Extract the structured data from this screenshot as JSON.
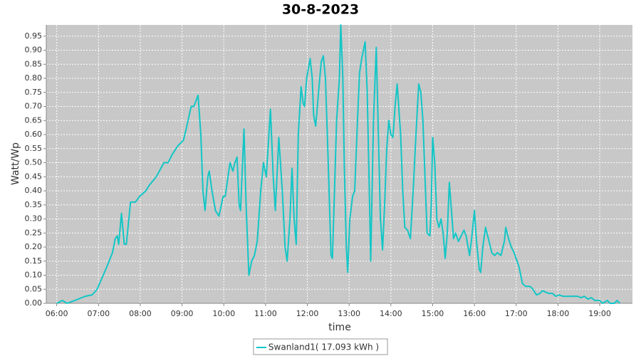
{
  "chart_data": {
    "type": "line",
    "title": "30-8-2023",
    "x_label": "time",
    "y_label": "Watt/Wp",
    "xlim": [
      "05:45",
      "19:47"
    ],
    "xticks": [
      "06:00",
      "07:00",
      "08:00",
      "09:00",
      "10:00",
      "11:00",
      "12:00",
      "13:00",
      "14:00",
      "15:00",
      "16:00",
      "17:00",
      "18:00",
      "19:00"
    ],
    "ylim": [
      0,
      0.99
    ],
    "yticks": [
      {
        "value": 0,
        "label": "0.00"
      },
      {
        "value": 0.05,
        "label": "0.05"
      },
      {
        "value": 0.1,
        "label": "0.10"
      },
      {
        "value": 0.15,
        "label": "0.15"
      },
      {
        "value": 0.2,
        "label": "0.20"
      },
      {
        "value": 0.25,
        "label": "0.25"
      },
      {
        "value": 0.3,
        "label": "0.30"
      },
      {
        "value": 0.35,
        "label": "0.35"
      },
      {
        "value": 0.4,
        "label": "0.40"
      },
      {
        "value": 0.45,
        "label": "0.45"
      },
      {
        "value": 0.5,
        "label": "0.50"
      },
      {
        "value": 0.55,
        "label": "0.55"
      },
      {
        "value": 0.6,
        "label": "0.60"
      },
      {
        "value": 0.65,
        "label": "0.65"
      },
      {
        "value": 0.7,
        "label": "0.70"
      },
      {
        "value": 0.75,
        "label": "0.75"
      },
      {
        "value": 0.8,
        "label": "0.80"
      },
      {
        "value": 0.85,
        "label": "0.85"
      },
      {
        "value": 0.9,
        "label": "0.90"
      },
      {
        "value": 0.95,
        "label": "0.95"
      }
    ],
    "grid": true,
    "background": "#c8c8c8",
    "legend": "bottom",
    "x": [
      "06:00",
      "06:08",
      "06:15",
      "06:31",
      "06:41",
      "06:51",
      "06:58",
      "07:12",
      "07:20",
      "07:24",
      "07:27",
      "07:29",
      "07:33",
      "07:37",
      "07:40",
      "07:46",
      "07:53",
      "07:59",
      "08:08",
      "08:13",
      "08:23",
      "08:34",
      "08:40",
      "08:46",
      "08:54",
      "09:02",
      "09:06",
      "09:13",
      "09:17",
      "09:23",
      "09:27",
      "09:30",
      "09:33",
      "09:37",
      "09:39",
      "09:43",
      "09:48",
      "09:53",
      "09:59",
      "10:02",
      "10:06",
      "10:09",
      "10:13",
      "10:16",
      "10:19",
      "10:22",
      "10:24",
      "10:29",
      "10:32",
      "10:36",
      "10:40",
      "10:44",
      "10:48",
      "10:53",
      "10:57",
      "11:01",
      "11:07",
      "11:11",
      "11:14",
      "11:19",
      "11:24",
      "11:28",
      "11:31",
      "11:35",
      "11:38",
      "11:41",
      "11:44",
      "11:47",
      "11:51",
      "11:54",
      "11:56",
      "11:59",
      "12:04",
      "12:07",
      "12:09",
      "12:12",
      "12:16",
      "12:20",
      "12:23",
      "12:26",
      "12:30",
      "12:34",
      "12:36",
      "12:39",
      "12:42",
      "12:46",
      "12:48",
      "12:51",
      "12:53",
      "12:56",
      "12:58",
      "13:01",
      "13:05",
      "13:08",
      "13:12",
      "13:15",
      "13:18",
      "13:23",
      "13:26",
      "13:29",
      "13:31",
      "13:35",
      "13:39",
      "13:42",
      "13:45",
      "13:48",
      "13:51",
      "13:54",
      "13:57",
      "14:00",
      "14:03",
      "14:06",
      "14:09",
      "14:14",
      "14:17",
      "14:20",
      "14:24",
      "14:28",
      "14:32",
      "14:36",
      "14:40",
      "14:43",
      "14:46",
      "14:49",
      "14:52",
      "14:56",
      "14:58",
      "15:00",
      "15:03",
      "15:06",
      "15:09",
      "15:12",
      "15:15",
      "15:18",
      "15:21",
      "15:24",
      "15:27",
      "15:30",
      "15:33",
      "15:37",
      "15:41",
      "15:45",
      "15:48",
      "15:53",
      "15:56",
      "16:00",
      "16:03",
      "16:07",
      "16:09",
      "16:12",
      "16:16",
      "16:21",
      "16:25",
      "16:29",
      "16:33",
      "16:38",
      "16:43",
      "16:45",
      "16:49",
      "16:53",
      "16:57",
      "17:04",
      "17:09",
      "17:14",
      "17:20",
      "17:24",
      "17:29",
      "17:34",
      "17:38",
      "17:42",
      "17:47",
      "17:52",
      "17:57",
      "18:02",
      "18:07",
      "18:17",
      "18:28",
      "18:33",
      "18:38",
      "18:43",
      "18:48",
      "18:53",
      "19:00",
      "19:04",
      "19:11",
      "19:15",
      "19:21",
      "19:25",
      "19:29"
    ],
    "series": [
      {
        "name": "Swanland1( 17.093 kWh )",
        "color": "#13c6c6",
        "values": [
          0,
          0.01,
          0,
          0.015,
          0.025,
          0.03,
          0.05,
          0.13,
          0.18,
          0.23,
          0.24,
          0.21,
          0.32,
          0.21,
          0.21,
          0.36,
          0.36,
          0.38,
          0.4,
          0.42,
          0.45,
          0.5,
          0.5,
          0.53,
          0.56,
          0.58,
          0.62,
          0.7,
          0.7,
          0.74,
          0.6,
          0.4,
          0.33,
          0.45,
          0.47,
          0.4,
          0.33,
          0.31,
          0.38,
          0.38,
          0.45,
          0.5,
          0.47,
          0.5,
          0.52,
          0.35,
          0.33,
          0.62,
          0.35,
          0.1,
          0.15,
          0.17,
          0.22,
          0.4,
          0.5,
          0.45,
          0.69,
          0.45,
          0.33,
          0.59,
          0.4,
          0.2,
          0.15,
          0.3,
          0.48,
          0.3,
          0.21,
          0.6,
          0.77,
          0.71,
          0.7,
          0.8,
          0.87,
          0.8,
          0.67,
          0.63,
          0.75,
          0.86,
          0.88,
          0.8,
          0.5,
          0.17,
          0.16,
          0.4,
          0.65,
          0.8,
          0.99,
          0.8,
          0.5,
          0.2,
          0.11,
          0.3,
          0.38,
          0.4,
          0.65,
          0.82,
          0.87,
          0.93,
          0.75,
          0.4,
          0.15,
          0.65,
          0.91,
          0.6,
          0.3,
          0.19,
          0.35,
          0.55,
          0.65,
          0.6,
          0.59,
          0.7,
          0.78,
          0.6,
          0.4,
          0.27,
          0.26,
          0.23,
          0.4,
          0.6,
          0.78,
          0.75,
          0.65,
          0.45,
          0.25,
          0.24,
          0.35,
          0.59,
          0.5,
          0.3,
          0.27,
          0.3,
          0.25,
          0.16,
          0.25,
          0.43,
          0.33,
          0.23,
          0.25,
          0.22,
          0.24,
          0.26,
          0.24,
          0.17,
          0.23,
          0.33,
          0.22,
          0.12,
          0.11,
          0.2,
          0.27,
          0.22,
          0.18,
          0.17,
          0.18,
          0.17,
          0.22,
          0.27,
          0.23,
          0.2,
          0.18,
          0.13,
          0.07,
          0.06,
          0.06,
          0.05,
          0.03,
          0.035,
          0.045,
          0.04,
          0.035,
          0.035,
          0.025,
          0.03,
          0.025,
          0.025,
          0.025,
          0.02,
          0.025,
          0.015,
          0.02,
          0.01,
          0.01,
          0,
          0.01,
          0,
          0,
          0.01,
          0
        ]
      }
    ]
  }
}
